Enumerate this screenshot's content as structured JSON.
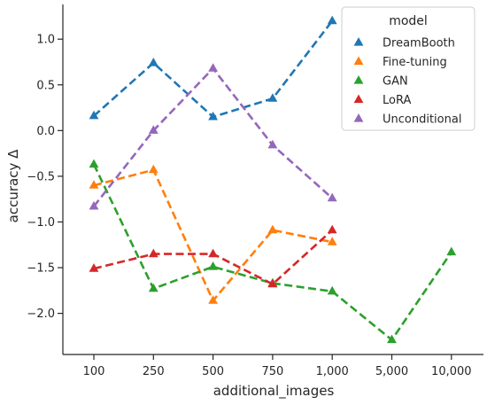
{
  "chart_data": {
    "type": "line",
    "xlabel": "additional_images",
    "ylabel": "accuracy Δ",
    "categories": [
      "100",
      "250",
      "500",
      "750",
      "1,000",
      "5,000",
      "10,000"
    ],
    "ylim": [
      -2.45,
      1.38
    ],
    "yticks": [
      1.0,
      0.5,
      0.0,
      -0.5,
      -1.0,
      -1.5,
      -2.0
    ],
    "ytick_labels": [
      "1.0",
      "0.5",
      "0.0",
      "−0.5",
      "−1.0",
      "−1.5",
      "−2.0"
    ],
    "grid": false,
    "line_style": "dashed",
    "marker": "triangle",
    "legend": {
      "title": "model",
      "position": "top-right"
    },
    "series": [
      {
        "name": "DreamBooth",
        "color": "#1f77b4",
        "points": [
          [
            "100",
            0.16
          ],
          [
            "250",
            0.74
          ],
          [
            "500",
            0.15
          ],
          [
            "750",
            0.35
          ],
          [
            "1,000",
            1.2
          ]
        ]
      },
      {
        "name": "Fine-tuning",
        "color": "#ff7f0e",
        "points": [
          [
            "100",
            -0.6
          ],
          [
            "250",
            -0.43
          ],
          [
            "500",
            -1.86
          ],
          [
            "750",
            -1.09
          ],
          [
            "1,000",
            -1.22
          ]
        ]
      },
      {
        "name": "GAN",
        "color": "#2ca02c",
        "points": [
          [
            "100",
            -0.37
          ],
          [
            "250",
            -1.73
          ],
          [
            "500",
            -1.49
          ],
          [
            "750",
            -1.67
          ],
          [
            "1,000",
            -1.76
          ],
          [
            "5,000",
            -2.29
          ],
          [
            "10,000",
            -1.33
          ]
        ]
      },
      {
        "name": "LoRA",
        "color": "#d62728",
        "points": [
          [
            "100",
            -1.51
          ],
          [
            "250",
            -1.35
          ],
          [
            "500",
            -1.35
          ],
          [
            "750",
            -1.68
          ],
          [
            "1,000",
            -1.09
          ]
        ]
      },
      {
        "name": "Unconditional",
        "color": "#9467bd",
        "points": [
          [
            "100",
            -0.83
          ],
          [
            "250",
            0.0
          ],
          [
            "500",
            0.68
          ],
          [
            "750",
            -0.16
          ],
          [
            "1,000",
            -0.74
          ]
        ]
      }
    ]
  }
}
